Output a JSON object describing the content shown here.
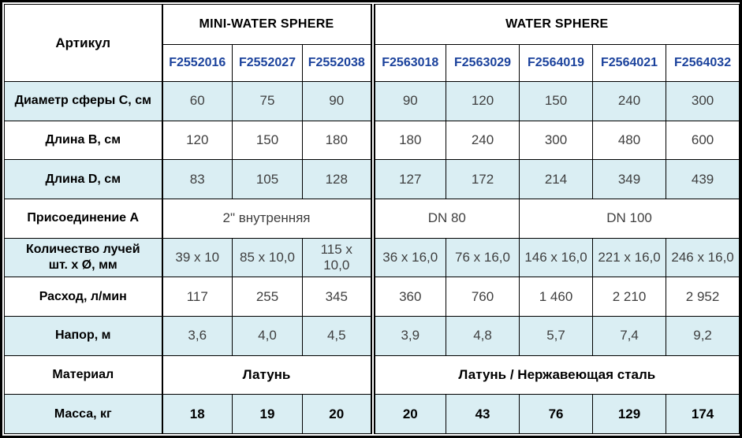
{
  "colors": {
    "shade_row": "#daeef3",
    "article_number": "#1b429c",
    "value_text": "#3f3f3f",
    "border": "#000000"
  },
  "table": {
    "corner_label": "Артикул",
    "groups": [
      {
        "label": "MINI-WATER SPHERE",
        "columns": [
          "F2552016",
          "F2552027",
          "F2552038"
        ]
      },
      {
        "label": "WATER SPHERE",
        "columns": [
          "F2563018",
          "F2563029",
          "F2564019",
          "F2564021",
          "F2564032"
        ]
      }
    ],
    "rows": [
      {
        "label": "Диаметр сферы С, см",
        "shade": true,
        "bold": false,
        "cells": [
          {
            "v": "60"
          },
          {
            "v": "75"
          },
          {
            "v": "90"
          },
          {
            "v": "90"
          },
          {
            "v": "120"
          },
          {
            "v": "150"
          },
          {
            "v": "240"
          },
          {
            "v": "300"
          }
        ]
      },
      {
        "label": "Длина B, см",
        "shade": false,
        "bold": false,
        "cells": [
          {
            "v": "120"
          },
          {
            "v": "150"
          },
          {
            "v": "180"
          },
          {
            "v": "180"
          },
          {
            "v": "240"
          },
          {
            "v": "300"
          },
          {
            "v": "480"
          },
          {
            "v": "600"
          }
        ]
      },
      {
        "label": "Длина D, см",
        "shade": true,
        "bold": false,
        "cells": [
          {
            "v": "83"
          },
          {
            "v": "105"
          },
          {
            "v": "128"
          },
          {
            "v": "127"
          },
          {
            "v": "172"
          },
          {
            "v": "214"
          },
          {
            "v": "349"
          },
          {
            "v": "439"
          }
        ]
      },
      {
        "label": "Присоединение А",
        "shade": false,
        "bold": false,
        "cells": [
          {
            "v": "2\" внутренняя",
            "span": 3
          },
          {
            "v": "DN 80",
            "span": 2
          },
          {
            "v": "DN 100",
            "span": 3
          }
        ]
      },
      {
        "label": "Количество лучей\nшт. х Ø, мм",
        "shade": true,
        "bold": false,
        "cells": [
          {
            "v": "39 x 10"
          },
          {
            "v": "85 x 10,0"
          },
          {
            "v": "115 x 10,0"
          },
          {
            "v": "36 x 16,0"
          },
          {
            "v": "76 x 16,0"
          },
          {
            "v": "146 x 16,0"
          },
          {
            "v": "221 x 16,0"
          },
          {
            "v": "246 x 16,0"
          }
        ]
      },
      {
        "label": "Расход, л/мин",
        "shade": false,
        "bold": false,
        "cells": [
          {
            "v": "117"
          },
          {
            "v": "255"
          },
          {
            "v": "345"
          },
          {
            "v": "360"
          },
          {
            "v": "760"
          },
          {
            "v": "1 460"
          },
          {
            "v": "2 210"
          },
          {
            "v": "2 952"
          }
        ]
      },
      {
        "label": "Напор, м",
        "shade": true,
        "bold": false,
        "cells": [
          {
            "v": "3,6"
          },
          {
            "v": "4,0"
          },
          {
            "v": "4,5"
          },
          {
            "v": "3,9"
          },
          {
            "v": "4,8"
          },
          {
            "v": "5,7"
          },
          {
            "v": "7,4"
          },
          {
            "v": "9,2"
          }
        ]
      },
      {
        "label": "Материал",
        "shade": false,
        "bold": true,
        "cells": [
          {
            "v": "Латунь",
            "span": 3
          },
          {
            "v": "Латунь / Нержавеющая сталь",
            "span": 5
          }
        ]
      },
      {
        "label": "Масса, кг",
        "shade": true,
        "bold": true,
        "cells": [
          {
            "v": "18"
          },
          {
            "v": "19"
          },
          {
            "v": "20"
          },
          {
            "v": "20"
          },
          {
            "v": "43"
          },
          {
            "v": "76"
          },
          {
            "v": "129"
          },
          {
            "v": "174"
          }
        ]
      }
    ]
  }
}
